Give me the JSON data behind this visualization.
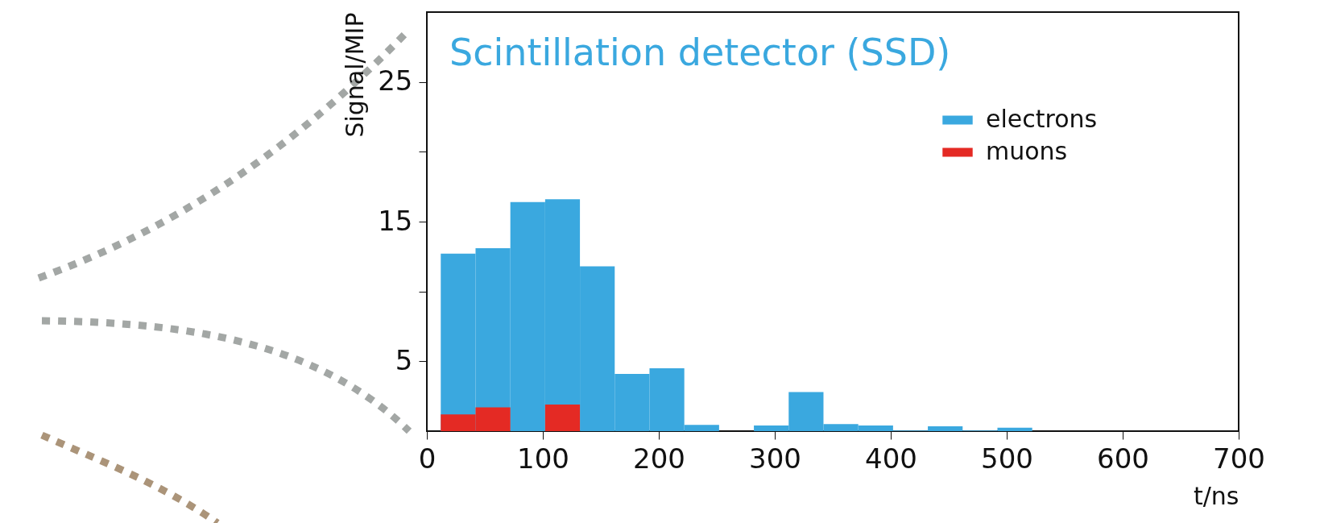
{
  "chart_data": {
    "type": "histogram",
    "title": "Scintillation detector (SSD)",
    "xlabel": "t/ns",
    "ylabel": "Signal/MIP",
    "bins": [
      12,
      42,
      72,
      102,
      132,
      162,
      192,
      222,
      252,
      282,
      312,
      342,
      372,
      402,
      432,
      462,
      492,
      522
    ],
    "series": [
      {
        "name": "electrons",
        "color": "#3aa8df",
        "values": [
          12.7,
          13.1,
          16.4,
          16.6,
          11.8,
          4.1,
          4.5,
          0.45,
          0,
          0.4,
          2.8,
          0.5,
          0.4,
          0.05,
          0.35,
          0.05,
          0.25
        ]
      },
      {
        "name": "muons",
        "color": "#e42a24",
        "values": [
          1.2,
          1.7,
          0,
          1.9,
          0,
          0,
          0,
          0,
          0,
          0,
          0,
          0,
          0,
          0,
          0,
          0,
          0
        ]
      }
    ],
    "xlim": [
      0,
      700
    ],
    "xticks": [
      0,
      100,
      200,
      300,
      400,
      500,
      600,
      700
    ],
    "ylim": [
      0,
      30
    ],
    "yticks": [
      5,
      {
        "value": 10,
        "label": null
      },
      15,
      {
        "value": 20,
        "label": null
      },
      25
    ],
    "grid": false,
    "legend": "top right"
  }
}
